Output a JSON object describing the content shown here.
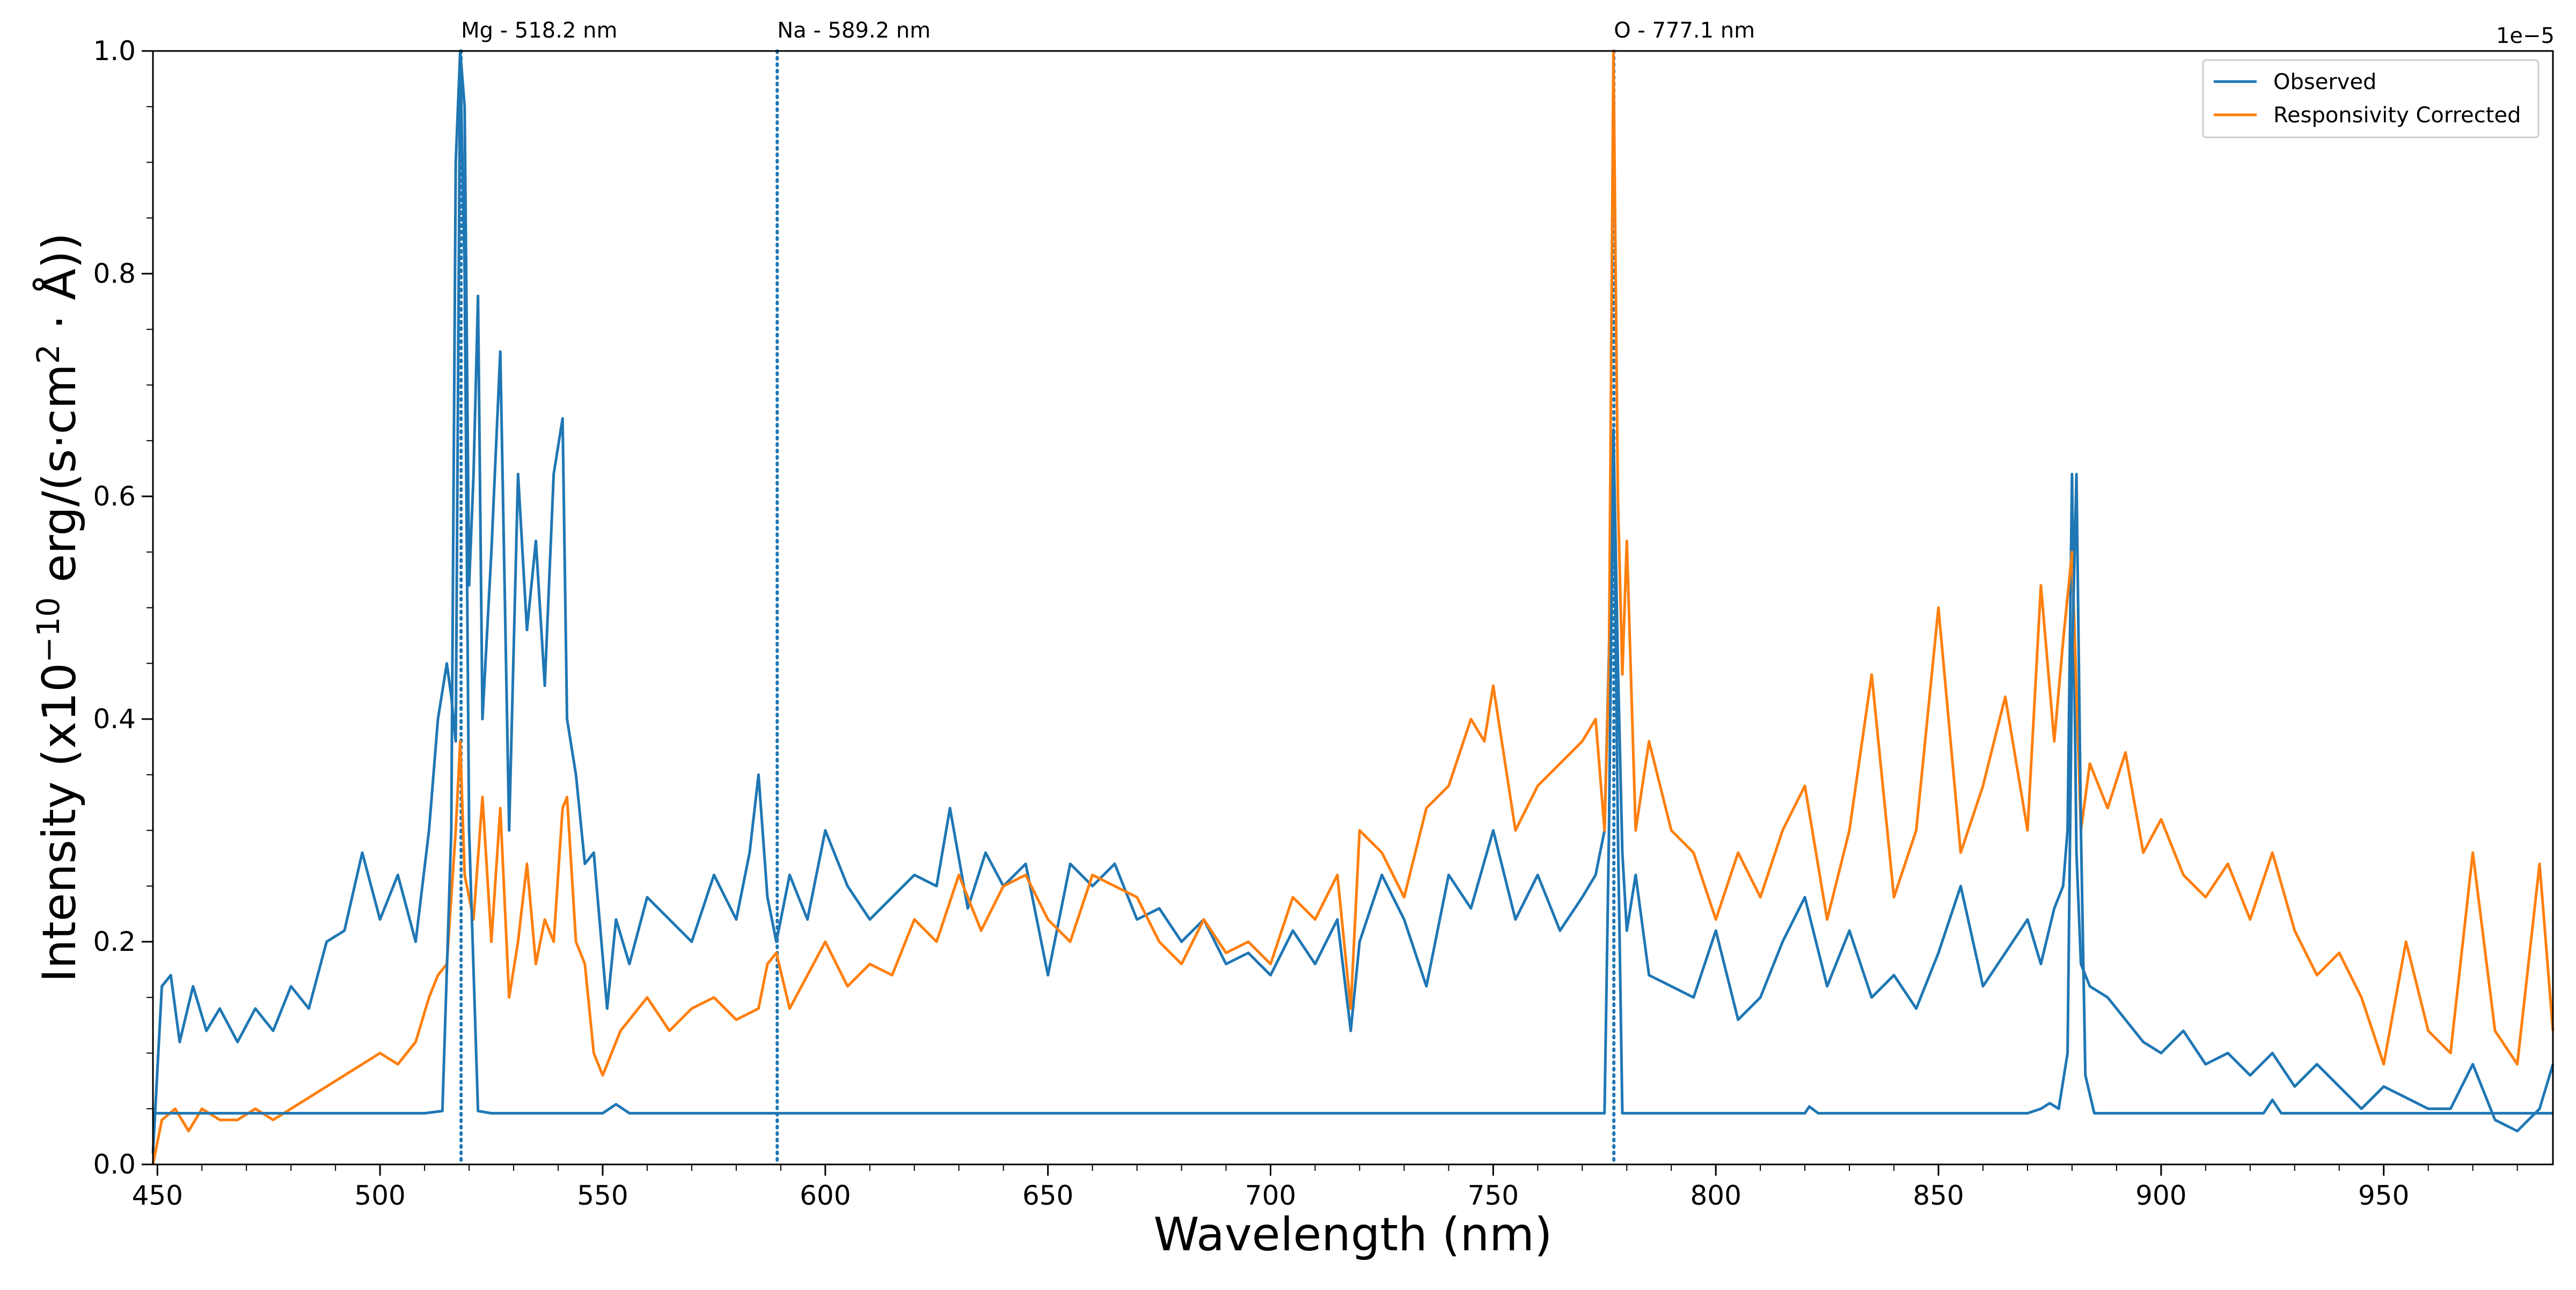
{
  "chart_data": {
    "type": "line",
    "title": "",
    "xlabel": "Wavelength (nm)",
    "ylabel": "Intensity (x10",
    "ylabel_exponent": "−10",
    "ylabel_units": " erg/(s·cm",
    "ylabel_units_exponent": "2",
    "ylabel_end": " · Å))",
    "xlim": [
      449,
      988
    ],
    "ylim": [
      0.0,
      1.0
    ],
    "xticks": [
      450,
      500,
      550,
      600,
      650,
      700,
      750,
      800,
      850,
      900,
      950
    ],
    "xtick_labels": [
      "450",
      "500",
      "550",
      "600",
      "650",
      "700",
      "750",
      "800",
      "850",
      "900",
      "950"
    ],
    "yticks": [
      0.0,
      0.2,
      0.4,
      0.6,
      0.8,
      1.0
    ],
    "ytick_labels": [
      "0.0",
      "0.2",
      "0.4",
      "0.6",
      "0.8",
      "1.0"
    ],
    "secondary_axis_offset": "1e−5",
    "grid": false,
    "legend_position": "top-right",
    "emission_lines": [
      {
        "wavelength": 518.2,
        "label": "Mg - 518.2 nm"
      },
      {
        "wavelength": 589.2,
        "label": "Na - 589.2 nm"
      },
      {
        "wavelength": 777.1,
        "label": "O - 777.1 nm"
      }
    ],
    "series": [
      {
        "name": "Observed",
        "color": "#1f77b4",
        "x": [
          449,
          451,
          453,
          455,
          458,
          461,
          464,
          468,
          472,
          476,
          480,
          484,
          488,
          492,
          496,
          500,
          504,
          508,
          511,
          513,
          515,
          516,
          517,
          518,
          519,
          520,
          521,
          522,
          523,
          525,
          527,
          529,
          531,
          533,
          535,
          537,
          539,
          541,
          542,
          544,
          546,
          548,
          551,
          553,
          556,
          560,
          565,
          570,
          575,
          580,
          583,
          585,
          587,
          589,
          592,
          596,
          600,
          605,
          610,
          615,
          620,
          625,
          628,
          632,
          636,
          640,
          645,
          650,
          655,
          660,
          665,
          670,
          675,
          680,
          685,
          690,
          695,
          700,
          705,
          710,
          715,
          718,
          720,
          725,
          730,
          735,
          740,
          745,
          750,
          755,
          760,
          765,
          770,
          773,
          775,
          776,
          777,
          778,
          779,
          780,
          782,
          785,
          790,
          795,
          800,
          805,
          810,
          815,
          820,
          825,
          830,
          835,
          840,
          845,
          850,
          855,
          860,
          865,
          870,
          873,
          876,
          878,
          879,
          880,
          881,
          882,
          884,
          888,
          892,
          896,
          900,
          905,
          910,
          915,
          920,
          925,
          930,
          935,
          940,
          945,
          950,
          955,
          960,
          965,
          970,
          975,
          980,
          985,
          988
        ],
        "values": [
          0.01,
          0.16,
          0.17,
          0.11,
          0.16,
          0.12,
          0.14,
          0.11,
          0.14,
          0.12,
          0.16,
          0.14,
          0.2,
          0.21,
          0.28,
          0.22,
          0.26,
          0.2,
          0.3,
          0.4,
          0.45,
          0.42,
          0.38,
          1.0,
          0.95,
          0.52,
          0.62,
          0.78,
          0.4,
          0.55,
          0.73,
          0.3,
          0.62,
          0.48,
          0.56,
          0.43,
          0.62,
          0.67,
          0.4,
          0.35,
          0.27,
          0.28,
          0.14,
          0.22,
          0.18,
          0.24,
          0.22,
          0.2,
          0.26,
          0.22,
          0.28,
          0.35,
          0.24,
          0.2,
          0.26,
          0.22,
          0.3,
          0.25,
          0.22,
          0.24,
          0.26,
          0.25,
          0.32,
          0.23,
          0.28,
          0.25,
          0.27,
          0.17,
          0.27,
          0.25,
          0.27,
          0.22,
          0.23,
          0.2,
          0.22,
          0.18,
          0.19,
          0.17,
          0.21,
          0.18,
          0.22,
          0.12,
          0.2,
          0.26,
          0.22,
          0.16,
          0.26,
          0.23,
          0.3,
          0.22,
          0.26,
          0.21,
          0.24,
          0.26,
          0.3,
          0.46,
          0.66,
          0.45,
          0.28,
          0.21,
          0.26,
          0.17,
          0.16,
          0.15,
          0.21,
          0.13,
          0.15,
          0.2,
          0.24,
          0.16,
          0.21,
          0.15,
          0.17,
          0.14,
          0.19,
          0.25,
          0.16,
          0.19,
          0.22,
          0.18,
          0.23,
          0.25,
          0.3,
          0.62,
          0.28,
          0.18,
          0.16,
          0.15,
          0.13,
          0.11,
          0.1,
          0.12,
          0.09,
          0.1,
          0.08,
          0.1,
          0.07,
          0.09,
          0.07,
          0.05,
          0.07,
          0.06,
          0.05,
          0.05,
          0.09,
          0.04,
          0.03,
          0.05,
          0.09
        ]
      },
      {
        "name": "Responsivity Corrected",
        "color": "#ff7f0e",
        "x": [
          449,
          451,
          454,
          457,
          460,
          464,
          468,
          472,
          476,
          480,
          484,
          488,
          492,
          496,
          500,
          504,
          508,
          511,
          513,
          515,
          517,
          518,
          519,
          521,
          523,
          525,
          527,
          529,
          531,
          533,
          535,
          537,
          539,
          541,
          542,
          544,
          546,
          548,
          550,
          552,
          554,
          556,
          560,
          565,
          570,
          575,
          580,
          585,
          587,
          589,
          592,
          596,
          600,
          605,
          610,
          615,
          620,
          625,
          630,
          635,
          640,
          645,
          650,
          655,
          660,
          665,
          670,
          675,
          680,
          685,
          690,
          695,
          700,
          705,
          710,
          715,
          718,
          720,
          725,
          730,
          735,
          740,
          745,
          748,
          750,
          755,
          760,
          765,
          770,
          773,
          775,
          776,
          777,
          778,
          779,
          780,
          782,
          785,
          790,
          795,
          800,
          805,
          810,
          815,
          820,
          825,
          830,
          835,
          840,
          845,
          850,
          855,
          860,
          865,
          870,
          873,
          876,
          878,
          880,
          882,
          884,
          888,
          892,
          896,
          900,
          905,
          910,
          915,
          920,
          925,
          930,
          935,
          940,
          945,
          950,
          955,
          960,
          965,
          970,
          975,
          980,
          985,
          988
        ],
        "values": [
          0.0,
          0.04,
          0.05,
          0.03,
          0.05,
          0.04,
          0.04,
          0.05,
          0.04,
          0.05,
          0.06,
          0.07,
          0.08,
          0.09,
          0.1,
          0.09,
          0.11,
          0.15,
          0.17,
          0.18,
          0.3,
          0.38,
          0.26,
          0.22,
          0.33,
          0.2,
          0.32,
          0.15,
          0.2,
          0.27,
          0.18,
          0.22,
          0.2,
          0.32,
          0.33,
          0.2,
          0.18,
          0.1,
          0.08,
          0.1,
          0.12,
          0.13,
          0.15,
          0.12,
          0.14,
          0.15,
          0.13,
          0.14,
          0.18,
          0.19,
          0.14,
          0.17,
          0.2,
          0.16,
          0.18,
          0.17,
          0.22,
          0.2,
          0.26,
          0.21,
          0.25,
          0.26,
          0.22,
          0.2,
          0.26,
          0.25,
          0.24,
          0.2,
          0.18,
          0.22,
          0.19,
          0.2,
          0.18,
          0.24,
          0.22,
          0.26,
          0.14,
          0.3,
          0.28,
          0.24,
          0.32,
          0.34,
          0.4,
          0.38,
          0.43,
          0.3,
          0.34,
          0.36,
          0.38,
          0.4,
          0.3,
          0.45,
          1.0,
          0.6,
          0.44,
          0.56,
          0.3,
          0.38,
          0.3,
          0.28,
          0.22,
          0.28,
          0.24,
          0.3,
          0.34,
          0.22,
          0.3,
          0.44,
          0.24,
          0.3,
          0.5,
          0.28,
          0.34,
          0.42,
          0.3,
          0.52,
          0.38,
          0.47,
          0.55,
          0.3,
          0.36,
          0.32,
          0.37,
          0.28,
          0.31,
          0.26,
          0.24,
          0.27,
          0.22,
          0.28,
          0.21,
          0.17,
          0.19,
          0.15,
          0.09,
          0.2,
          0.12,
          0.1,
          0.28,
          0.12,
          0.09,
          0.27,
          0.12
        ]
      },
      {
        "name": "",
        "color": "#1f77b4",
        "x": [
          449,
          510,
          514,
          516,
          517,
          518,
          519,
          520,
          522,
          525,
          550,
          553,
          556,
          600,
          700,
          775,
          776,
          777,
          778,
          779,
          800,
          820,
          821,
          823,
          870,
          873,
          875,
          877,
          879,
          880,
          881,
          882,
          883,
          885,
          923,
          925,
          927,
          988
        ],
        "values": [
          0.046,
          0.046,
          0.048,
          0.3,
          0.9,
          1.0,
          0.8,
          0.3,
          0.048,
          0.046,
          0.046,
          0.054,
          0.046,
          0.046,
          0.046,
          0.046,
          0.3,
          0.66,
          0.3,
          0.046,
          0.046,
          0.046,
          0.052,
          0.046,
          0.046,
          0.05,
          0.055,
          0.05,
          0.1,
          0.45,
          0.62,
          0.3,
          0.08,
          0.046,
          0.046,
          0.058,
          0.046,
          0.046
        ]
      }
    ]
  }
}
